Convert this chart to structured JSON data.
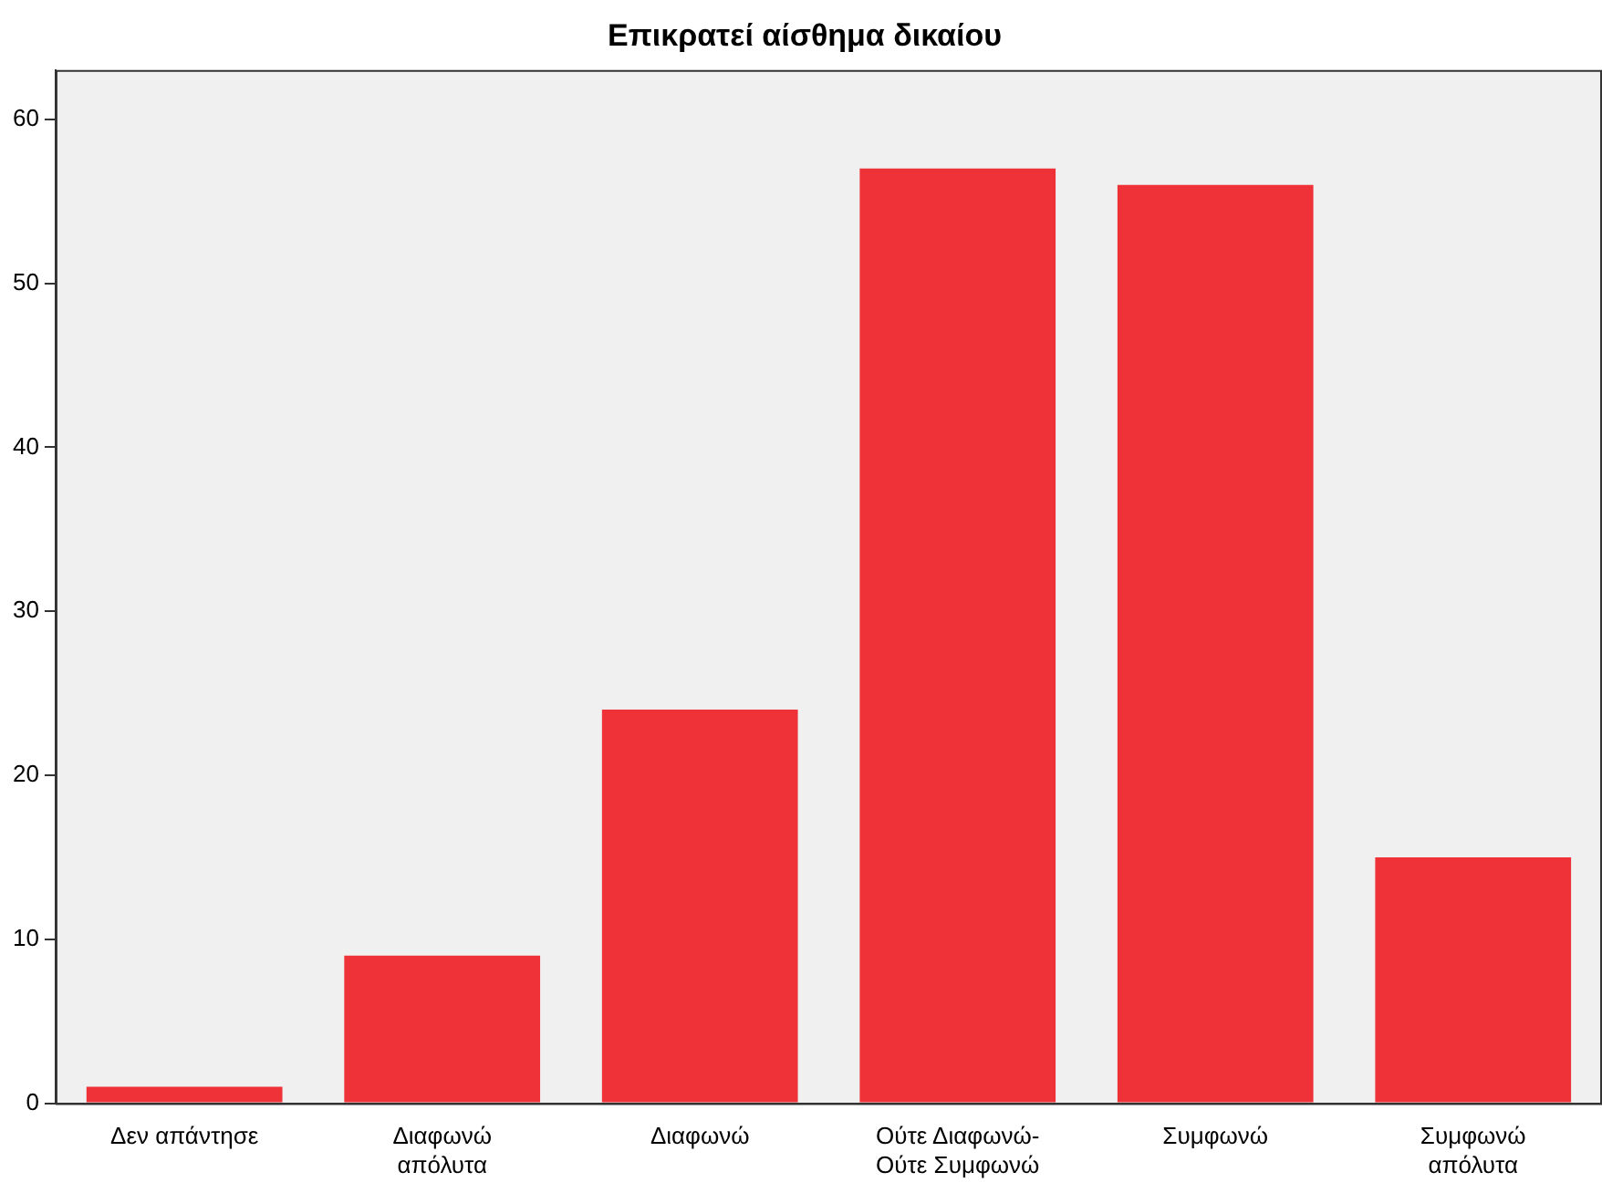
{
  "chart_data": {
    "type": "bar",
    "title": "Επικρατεί αίσθημα δικαίου",
    "categories": [
      "Δεν απάντησε",
      "Διαφωνώ απόλυτα",
      "Διαφωνώ",
      "Ούτε Διαφωνώ-Ούτε Συμφωνώ",
      "Συμφωνώ",
      "Συμφωνώ απόλυτα"
    ],
    "values": [
      1,
      9,
      24,
      57,
      56,
      15
    ],
    "color": "#ee3237",
    "ylim": [
      0,
      63
    ],
    "yticks": [
      0,
      10,
      20,
      30,
      40,
      50,
      60
    ],
    "grid": false,
    "legend": false
  }
}
